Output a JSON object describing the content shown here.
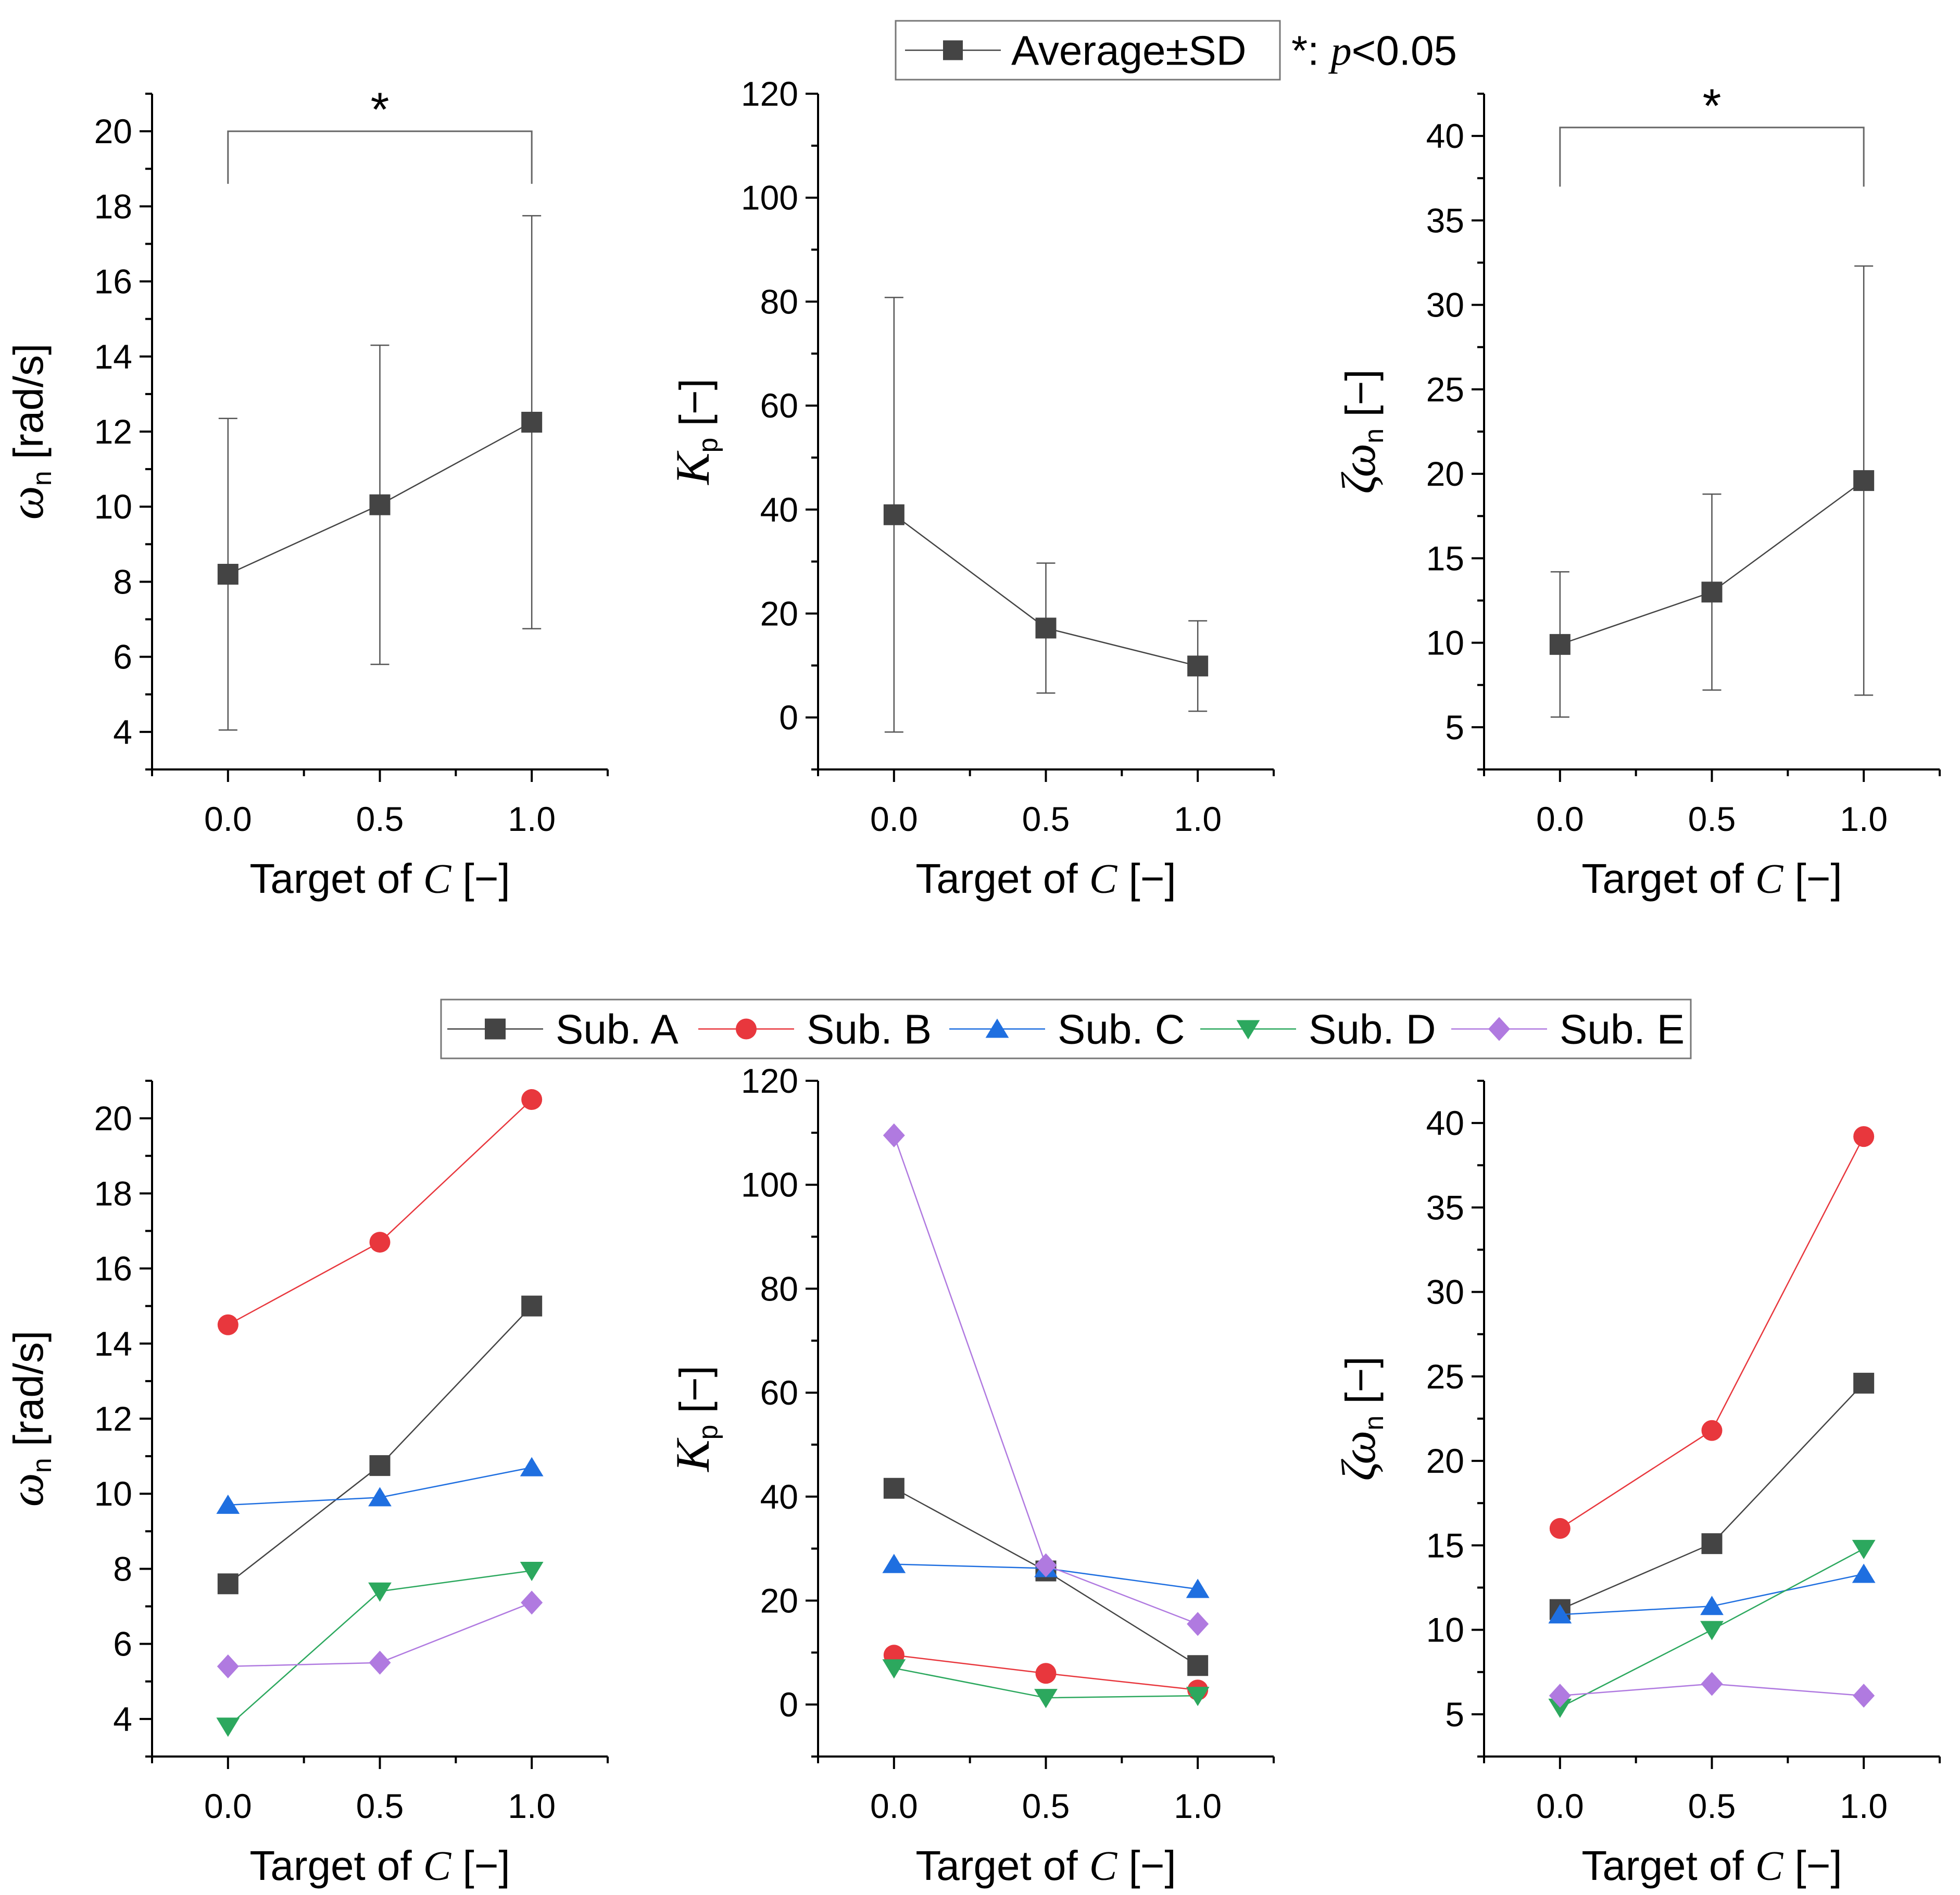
{
  "legend_top": {
    "series_label": "Average±SD",
    "note_prefix": "*: ",
    "note_p": "p",
    "note_rest": "<0.05"
  },
  "legend_bottom": {
    "items": [
      "Sub. A",
      "Sub. B",
      "Sub. C",
      "Sub. D",
      "Sub. E"
    ]
  },
  "labels": {
    "target_prefix": "Target of ",
    "target_var": "C",
    "target_unit": " [−]",
    "omega_sym": "ω",
    "omega_sub": "n",
    "omega_unit": " [rad/s]",
    "kp_sym": "K",
    "kp_sub": "p",
    "kp_unit": " [−]",
    "zeta_sym": "ζω",
    "zeta_sub": "n",
    "zeta_unit": " [−]",
    "significance": "*"
  },
  "colors": {
    "Sub. A": "#444444",
    "Sub. B": "#e8373d",
    "Sub. C": "#1f6fe0",
    "Sub. D": "#2ca85e",
    "Sub. E": "#b07ae0",
    "average": "#444444",
    "axis": "#000000"
  },
  "chart_data": [
    {
      "id": "avg-omega",
      "type": "line",
      "xlabel": "Target of C [−]",
      "ylabel": "ωn [rad/s]",
      "x": [
        0.0,
        0.5,
        1.0
      ],
      "xticks": [
        "0.0",
        "0.5",
        "1.0"
      ],
      "xlim": [
        -0.25,
        1.25
      ],
      "ylim": [
        3,
        21
      ],
      "yticks": [
        4,
        6,
        8,
        10,
        12,
        14,
        16,
        18,
        20
      ],
      "ytick_minor": 1,
      "series": [
        {
          "name": "Average±SD",
          "marker": "square",
          "values": [
            8.2,
            10.05,
            12.25
          ],
          "sd": [
            4.15,
            4.25,
            5.5
          ]
        }
      ],
      "significance": {
        "x1": 0.0,
        "x2": 1.0,
        "y_top": 20.0,
        "y_bottom": 18.6,
        "label": "*"
      }
    },
    {
      "id": "avg-kp",
      "type": "line",
      "xlabel": "Target of C [−]",
      "ylabel": "Kp [−]",
      "x": [
        0.0,
        0.5,
        1.0
      ],
      "xticks": [
        "0.0",
        "0.5",
        "1.0"
      ],
      "xlim": [
        -0.25,
        1.25
      ],
      "ylim": [
        -10,
        120
      ],
      "yticks": [
        0,
        20,
        40,
        60,
        80,
        100,
        120
      ],
      "ytick_minor": 10,
      "series": [
        {
          "name": "Average±SD",
          "marker": "square",
          "values": [
            39.0,
            17.2,
            9.9
          ],
          "sd": [
            41.8,
            12.5,
            8.7
          ]
        }
      ]
    },
    {
      "id": "avg-zeta",
      "type": "line",
      "xlabel": "Target of C [−]",
      "ylabel": "ζωn [−]",
      "x": [
        0.0,
        0.5,
        1.0
      ],
      "xticks": [
        "0.0",
        "0.5",
        "1.0"
      ],
      "xlim": [
        -0.25,
        1.25
      ],
      "ylim": [
        2.5,
        42.5
      ],
      "yticks": [
        5,
        10,
        15,
        20,
        25,
        30,
        35,
        40
      ],
      "ytick_minor": 2.5,
      "series": [
        {
          "name": "Average±SD",
          "marker": "square",
          "values": [
            9.9,
            13.0,
            19.6
          ],
          "sd": [
            4.3,
            5.8,
            12.7
          ]
        }
      ],
      "significance": {
        "x1": 0.0,
        "x2": 1.0,
        "y_top": 40.5,
        "y_bottom": 37.0,
        "label": "*"
      }
    },
    {
      "id": "sub-omega",
      "type": "line",
      "xlabel": "Target of C [−]",
      "ylabel": "ωn [rad/s]",
      "x": [
        0.0,
        0.5,
        1.0
      ],
      "xticks": [
        "0.0",
        "0.5",
        "1.0"
      ],
      "xlim": [
        -0.25,
        1.25
      ],
      "ylim": [
        3,
        21
      ],
      "yticks": [
        4,
        6,
        8,
        10,
        12,
        14,
        16,
        18,
        20
      ],
      "ytick_minor": 1,
      "series": [
        {
          "name": "Sub. A",
          "marker": "square",
          "values": [
            7.6,
            10.75,
            15.0
          ]
        },
        {
          "name": "Sub. B",
          "marker": "circle",
          "values": [
            14.5,
            16.7,
            20.5
          ]
        },
        {
          "name": "Sub. C",
          "marker": "triangle-up",
          "values": [
            9.7,
            9.9,
            10.7
          ]
        },
        {
          "name": "Sub. D",
          "marker": "triangle-down",
          "values": [
            3.8,
            7.4,
            7.95
          ]
        },
        {
          "name": "Sub. E",
          "marker": "diamond",
          "values": [
            5.4,
            5.5,
            7.1
          ]
        }
      ]
    },
    {
      "id": "sub-kp",
      "type": "line",
      "xlabel": "Target of C [−]",
      "ylabel": "Kp [−]",
      "x": [
        0.0,
        0.5,
        1.0
      ],
      "xticks": [
        "0.0",
        "0.5",
        "1.0"
      ],
      "xlim": [
        -0.25,
        1.25
      ],
      "ylim": [
        -10,
        120
      ],
      "yticks": [
        0,
        20,
        40,
        60,
        80,
        100,
        120
      ],
      "ytick_minor": 10,
      "series": [
        {
          "name": "Sub. A",
          "marker": "square",
          "values": [
            41.6,
            25.7,
            7.5
          ]
        },
        {
          "name": "Sub. B",
          "marker": "circle",
          "values": [
            9.5,
            6.0,
            2.8
          ]
        },
        {
          "name": "Sub. C",
          "marker": "triangle-up",
          "values": [
            27.0,
            26.2,
            22.2
          ]
        },
        {
          "name": "Sub. D",
          "marker": "triangle-down",
          "values": [
            7.0,
            1.3,
            1.7
          ]
        },
        {
          "name": "Sub. E",
          "marker": "diamond",
          "values": [
            109.5,
            26.8,
            15.5
          ]
        }
      ]
    },
    {
      "id": "sub-zeta",
      "type": "line",
      "xlabel": "Target of C [−]",
      "ylabel": "ζωn [−]",
      "x": [
        0.0,
        0.5,
        1.0
      ],
      "xticks": [
        "0.0",
        "0.5",
        "1.0"
      ],
      "xlim": [
        -0.25,
        1.25
      ],
      "ylim": [
        2.5,
        42.5
      ],
      "yticks": [
        5,
        10,
        15,
        20,
        25,
        30,
        35,
        40
      ],
      "ytick_minor": 2.5,
      "series": [
        {
          "name": "Sub. A",
          "marker": "square",
          "values": [
            11.2,
            15.1,
            24.6
          ]
        },
        {
          "name": "Sub. B",
          "marker": "circle",
          "values": [
            16.0,
            21.8,
            39.2
          ]
        },
        {
          "name": "Sub. C",
          "marker": "triangle-up",
          "values": [
            10.9,
            11.4,
            13.3
          ]
        },
        {
          "name": "Sub. D",
          "marker": "triangle-down",
          "values": [
            5.4,
            10.0,
            14.8
          ]
        },
        {
          "name": "Sub. E",
          "marker": "diamond",
          "values": [
            6.1,
            6.8,
            6.1
          ]
        }
      ]
    }
  ]
}
